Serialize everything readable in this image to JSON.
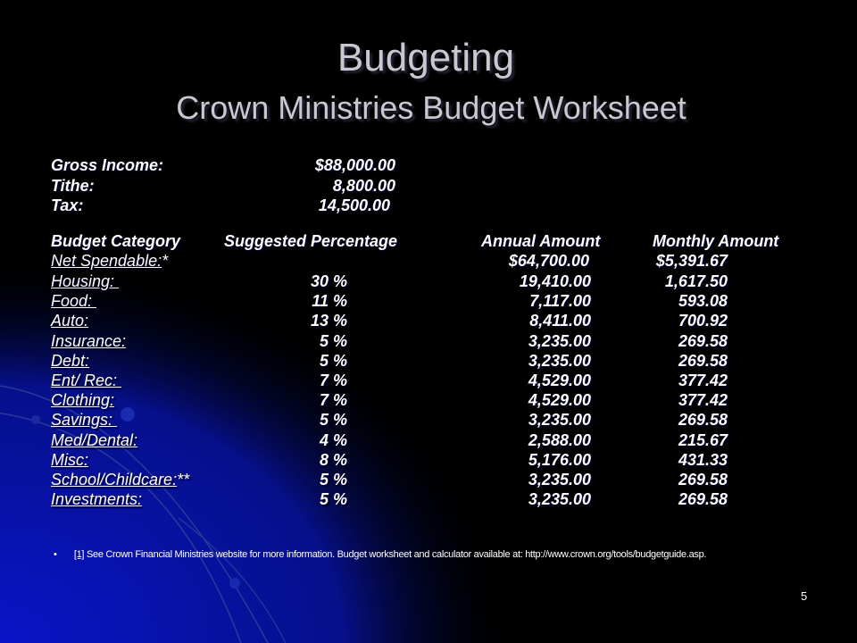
{
  "title": "Budgeting",
  "subtitle": "Crown Ministries Budget Worksheet",
  "summary": [
    {
      "label": "Gross Income:",
      "value": "$88,000.00"
    },
    {
      "label": "Tithe:",
      "value": "8,800.00"
    },
    {
      "label": "Tax:",
      "value": "14,500.00"
    }
  ],
  "headers": {
    "category": "Budget Category",
    "percent": "Suggested Percentage",
    "annual": "Annual Amount",
    "monthly": "Monthly Amount"
  },
  "net": {
    "label": "Net Spendable:",
    "suffix": "*",
    "annual": "$64,700.00",
    "monthly": "$5,391.67"
  },
  "rows": [
    {
      "label": "Housing: ",
      "suffix": "",
      "percent": "30 %",
      "annual": "19,410.00",
      "monthly": "1,617.50"
    },
    {
      "label": "Food: ",
      "suffix": "",
      "percent": "11 %",
      "annual": "7,117.00",
      "monthly": "593.08"
    },
    {
      "label": "Auto:",
      "suffix": "",
      "percent": "13 %",
      "annual": "8,411.00",
      "monthly": "700.92"
    },
    {
      "label": "Insurance:",
      "suffix": "",
      "percent": "5 %",
      "annual": "3,235.00",
      "monthly": "269.58"
    },
    {
      "label": "Debt:",
      "suffix": "",
      "percent": "5 %",
      "annual": "3,235.00",
      "monthly": "269.58"
    },
    {
      "label": "Ent/ Rec: ",
      "suffix": "",
      "percent": "7 %",
      "annual": "4,529.00",
      "monthly": "377.42"
    },
    {
      "label": "Clothing:",
      "suffix": "",
      "percent": "7 %",
      "annual": "4,529.00",
      "monthly": "377.42"
    },
    {
      "label": "Savings: ",
      "suffix": "",
      "percent": "5 %",
      "annual": "3,235.00",
      "monthly": "269.58"
    },
    {
      "label": "Med/Dental:",
      "suffix": "",
      "percent": "4 %",
      "annual": "2,588.00",
      "monthly": "215.67"
    },
    {
      "label": "Misc:",
      "suffix": "",
      "percent": "8 %",
      "annual": "5,176.00",
      "monthly": "431.33"
    },
    {
      "label": "School/Childcare:",
      "suffix": "**",
      "percent": "5 %",
      "annual": "3,235.00",
      "monthly": "269.58"
    },
    {
      "label": "Investments:",
      "suffix": "",
      "percent": "5 %",
      "annual": "3,235.00",
      "monthly": "269.58"
    }
  ],
  "footnote": {
    "bullet": "•",
    "ref": "[1]",
    "text": " See Crown Financial Ministries website for more information.  Budget worksheet and calculator available at: http://www.crown.org/tools/budgetguide.asp."
  },
  "page_number": "5",
  "colors": {
    "background": "#000000",
    "accent": "#0a14b4",
    "title": "#c8c8d0"
  }
}
